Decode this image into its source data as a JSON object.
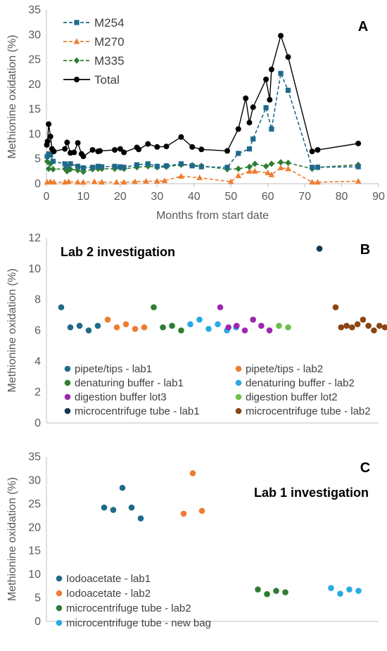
{
  "chart_data": [
    {
      "panel": "A",
      "type": "line",
      "ylabel": "Methionine oxidation (%)",
      "xlabel": "Months from start date",
      "xlim": [
        0,
        90
      ],
      "ylim": [
        0,
        35
      ],
      "xticks": [
        0,
        10,
        20,
        30,
        40,
        50,
        60,
        70,
        80,
        90
      ],
      "yticks": [
        0,
        5,
        10,
        15,
        20,
        25,
        30,
        35
      ],
      "legend_position": "top-left",
      "colors": {
        "M254": "#1f6a8a",
        "M270": "#ed7d31",
        "M335": "#2e7d32",
        "Total": "#000000"
      },
      "series": [
        {
          "name": "M254",
          "marker": "square",
          "dash": true,
          "points": [
            [
              0.2,
              5.5
            ],
            [
              0.6,
              6.0
            ],
            [
              1.1,
              5.8
            ],
            [
              1.8,
              4.5
            ],
            [
              5,
              4.0
            ],
            [
              5.6,
              3.5
            ],
            [
              6.5,
              4.0
            ],
            [
              8.5,
              3.5
            ],
            [
              10,
              3.2
            ],
            [
              12.5,
              3.3
            ],
            [
              14,
              3.5
            ],
            [
              15,
              3.4
            ],
            [
              18.5,
              3.5
            ],
            [
              20,
              3.4
            ],
            [
              21,
              3.3
            ],
            [
              24.5,
              3.8
            ],
            [
              27.5,
              4.0
            ],
            [
              30,
              3.5
            ],
            [
              32.5,
              3.6
            ],
            [
              36.5,
              4.0
            ],
            [
              39.5,
              3.6
            ],
            [
              42,
              3.4
            ],
            [
              49,
              3.3
            ],
            [
              52,
              6.1
            ],
            [
              55,
              7.0
            ],
            [
              56,
              9.0
            ],
            [
              59.5,
              15.3
            ],
            [
              61,
              11.0
            ],
            [
              63.5,
              22.2
            ],
            [
              65.5,
              18.8
            ],
            [
              72,
              3.3
            ],
            [
              73.5,
              3.3
            ],
            [
              84.5,
              3.4
            ]
          ]
        },
        {
          "name": "M270",
          "marker": "triangle",
          "dash": true,
          "points": [
            [
              0.2,
              0.3
            ],
            [
              1.1,
              0.4
            ],
            [
              2,
              0.3
            ],
            [
              5,
              0.3
            ],
            [
              6,
              0.4
            ],
            [
              8.5,
              0.3
            ],
            [
              10,
              0.3
            ],
            [
              13,
              0.4
            ],
            [
              15,
              0.3
            ],
            [
              19,
              0.3
            ],
            [
              21,
              0.3
            ],
            [
              24,
              0.4
            ],
            [
              27,
              0.5
            ],
            [
              30,
              0.5
            ],
            [
              32,
              0.6
            ],
            [
              36.5,
              1.5
            ],
            [
              41.5,
              1.2
            ],
            [
              50,
              0.4
            ],
            [
              52,
              1.6
            ],
            [
              55,
              2.5
            ],
            [
              56.5,
              2.5
            ],
            [
              60,
              2.2
            ],
            [
              61,
              1.8
            ],
            [
              63.5,
              3.2
            ],
            [
              65.5,
              3.0
            ],
            [
              72,
              0.3
            ],
            [
              73.5,
              0.3
            ],
            [
              84.5,
              0.5
            ]
          ]
        },
        {
          "name": "M335",
          "marker": "diamond",
          "dash": true,
          "points": [
            [
              0.2,
              4.5
            ],
            [
              0.6,
              3.0
            ],
            [
              1.1,
              4.0
            ],
            [
              1.8,
              2.9
            ],
            [
              5,
              3.0
            ],
            [
              5.6,
              2.5
            ],
            [
              6.5,
              2.9
            ],
            [
              8.5,
              2.7
            ],
            [
              10,
              2.4
            ],
            [
              12.5,
              2.9
            ],
            [
              14,
              3.0
            ],
            [
              15,
              3.0
            ],
            [
              18.5,
              3.0
            ],
            [
              20,
              3.2
            ],
            [
              21,
              3.0
            ],
            [
              24.5,
              3.3
            ],
            [
              27.5,
              3.5
            ],
            [
              30,
              3.3
            ],
            [
              32.5,
              3.4
            ],
            [
              36.5,
              3.8
            ],
            [
              39.5,
              3.7
            ],
            [
              42,
              3.6
            ],
            [
              49,
              2.9
            ],
            [
              52,
              3.0
            ],
            [
              55,
              3.4
            ],
            [
              56.5,
              4.0
            ],
            [
              59.5,
              3.5
            ],
            [
              61,
              4.0
            ],
            [
              63.5,
              4.3
            ],
            [
              65.5,
              4.2
            ],
            [
              72,
              3.0
            ],
            [
              73.5,
              3.3
            ],
            [
              84.5,
              3.8
            ]
          ]
        },
        {
          "name": "Total",
          "marker": "circle",
          "dash": false,
          "points": [
            [
              0.1,
              7.8
            ],
            [
              0.3,
              8.5
            ],
            [
              0.6,
              12.0
            ],
            [
              1.1,
              9.5
            ],
            [
              1.5,
              7.0
            ],
            [
              2,
              6.5
            ],
            [
              5,
              7.0
            ],
            [
              5.6,
              8.3
            ],
            [
              6.5,
              6.2
            ],
            [
              7.5,
              6.3
            ],
            [
              8.5,
              8.2
            ],
            [
              9.5,
              6.0
            ],
            [
              10,
              5.5
            ],
            [
              12.5,
              6.8
            ],
            [
              14,
              6.5
            ],
            [
              14.5,
              6.6
            ],
            [
              18.5,
              6.8
            ],
            [
              20,
              7.0
            ],
            [
              21,
              6.3
            ],
            [
              24.5,
              7.3
            ],
            [
              25,
              6.9
            ],
            [
              27.5,
              8.0
            ],
            [
              30,
              7.4
            ],
            [
              32.5,
              7.5
            ],
            [
              36.5,
              9.4
            ],
            [
              39.5,
              7.4
            ],
            [
              42,
              6.9
            ],
            [
              49,
              6.6
            ],
            [
              52,
              11.0
            ],
            [
              54,
              17.2
            ],
            [
              55,
              12.3
            ],
            [
              56,
              15.4
            ],
            [
              59.5,
              21.0
            ],
            [
              60.5,
              16.9
            ],
            [
              61,
              23.0
            ],
            [
              63.5,
              29.8
            ],
            [
              65.5,
              25.5
            ],
            [
              72,
              6.5
            ],
            [
              73.5,
              6.8
            ],
            [
              84.5,
              8.1
            ]
          ]
        }
      ]
    },
    {
      "panel": "B",
      "type": "scatter",
      "title": "Lab 2 investigation",
      "ylabel": "Methionine oxidation (%)",
      "ylim": [
        0,
        12
      ],
      "yticks": [
        0,
        2,
        4,
        6,
        8,
        10,
        12
      ],
      "legend_position": "bottom",
      "series": [
        {
          "name": "pipete/tips - lab1",
          "color": "#1f6a8a",
          "values": [
            7.5,
            6.2,
            6.3,
            6.0,
            6.3
          ]
        },
        {
          "name": "pipete/tips - lab2",
          "color": "#ed7d31",
          "values": [
            6.7,
            6.2,
            6.4,
            6.1,
            6.2
          ]
        },
        {
          "name": "denaturing buffer - lab1",
          "color": "#2e7d32",
          "values": [
            7.5,
            6.2,
            6.3,
            6.0
          ]
        },
        {
          "name": "denaturing buffer - lab2",
          "color": "#2aaae2",
          "values": [
            6.4,
            6.7,
            6.1,
            6.4,
            6.0,
            6.2
          ]
        },
        {
          "name": "digestion buffer lot3",
          "color": "#9c27b0",
          "values": [
            7.5,
            6.2,
            6.3,
            6.0,
            6.7,
            6.3,
            6.0
          ]
        },
        {
          "name": "digestion buffer lot2",
          "color": "#6cc04a",
          "values": [
            6.3,
            6.2
          ]
        },
        {
          "name": "microcentrifuge tube - lab1",
          "color": "#13384f",
          "values": [
            11.3
          ]
        },
        {
          "name": "microcentrifuge tube - lab2",
          "color": "#8b4513",
          "values": [
            7.5,
            6.2,
            6.3,
            6.2,
            6.4,
            6.7,
            6.3,
            6.0,
            6.3,
            6.2
          ]
        }
      ]
    },
    {
      "panel": "C",
      "type": "scatter",
      "title": "Lab 1 investigation",
      "ylabel": "Methionine oxidation (%)",
      "ylim": [
        0,
        35
      ],
      "yticks": [
        0,
        5,
        10,
        15,
        20,
        25,
        30,
        35
      ],
      "legend_position": "bottom-left",
      "series": [
        {
          "name": "Iodoacetate - lab1",
          "color": "#1f6a8a",
          "values": [
            24.2,
            23.7,
            28.4,
            24.2,
            21.9
          ]
        },
        {
          "name": "Iodoacetate - lab2",
          "color": "#ed7d31",
          "values": [
            22.9,
            31.5,
            23.5
          ]
        },
        {
          "name": "microcentrifuge tube - lab2",
          "color": "#2e7d32",
          "values": [
            6.8,
            5.8,
            6.5,
            6.2
          ]
        },
        {
          "name": "microcentrifuge tube - new bag",
          "color": "#2aaae2",
          "values": [
            7.1,
            5.9,
            6.8,
            6.5
          ]
        }
      ]
    }
  ]
}
